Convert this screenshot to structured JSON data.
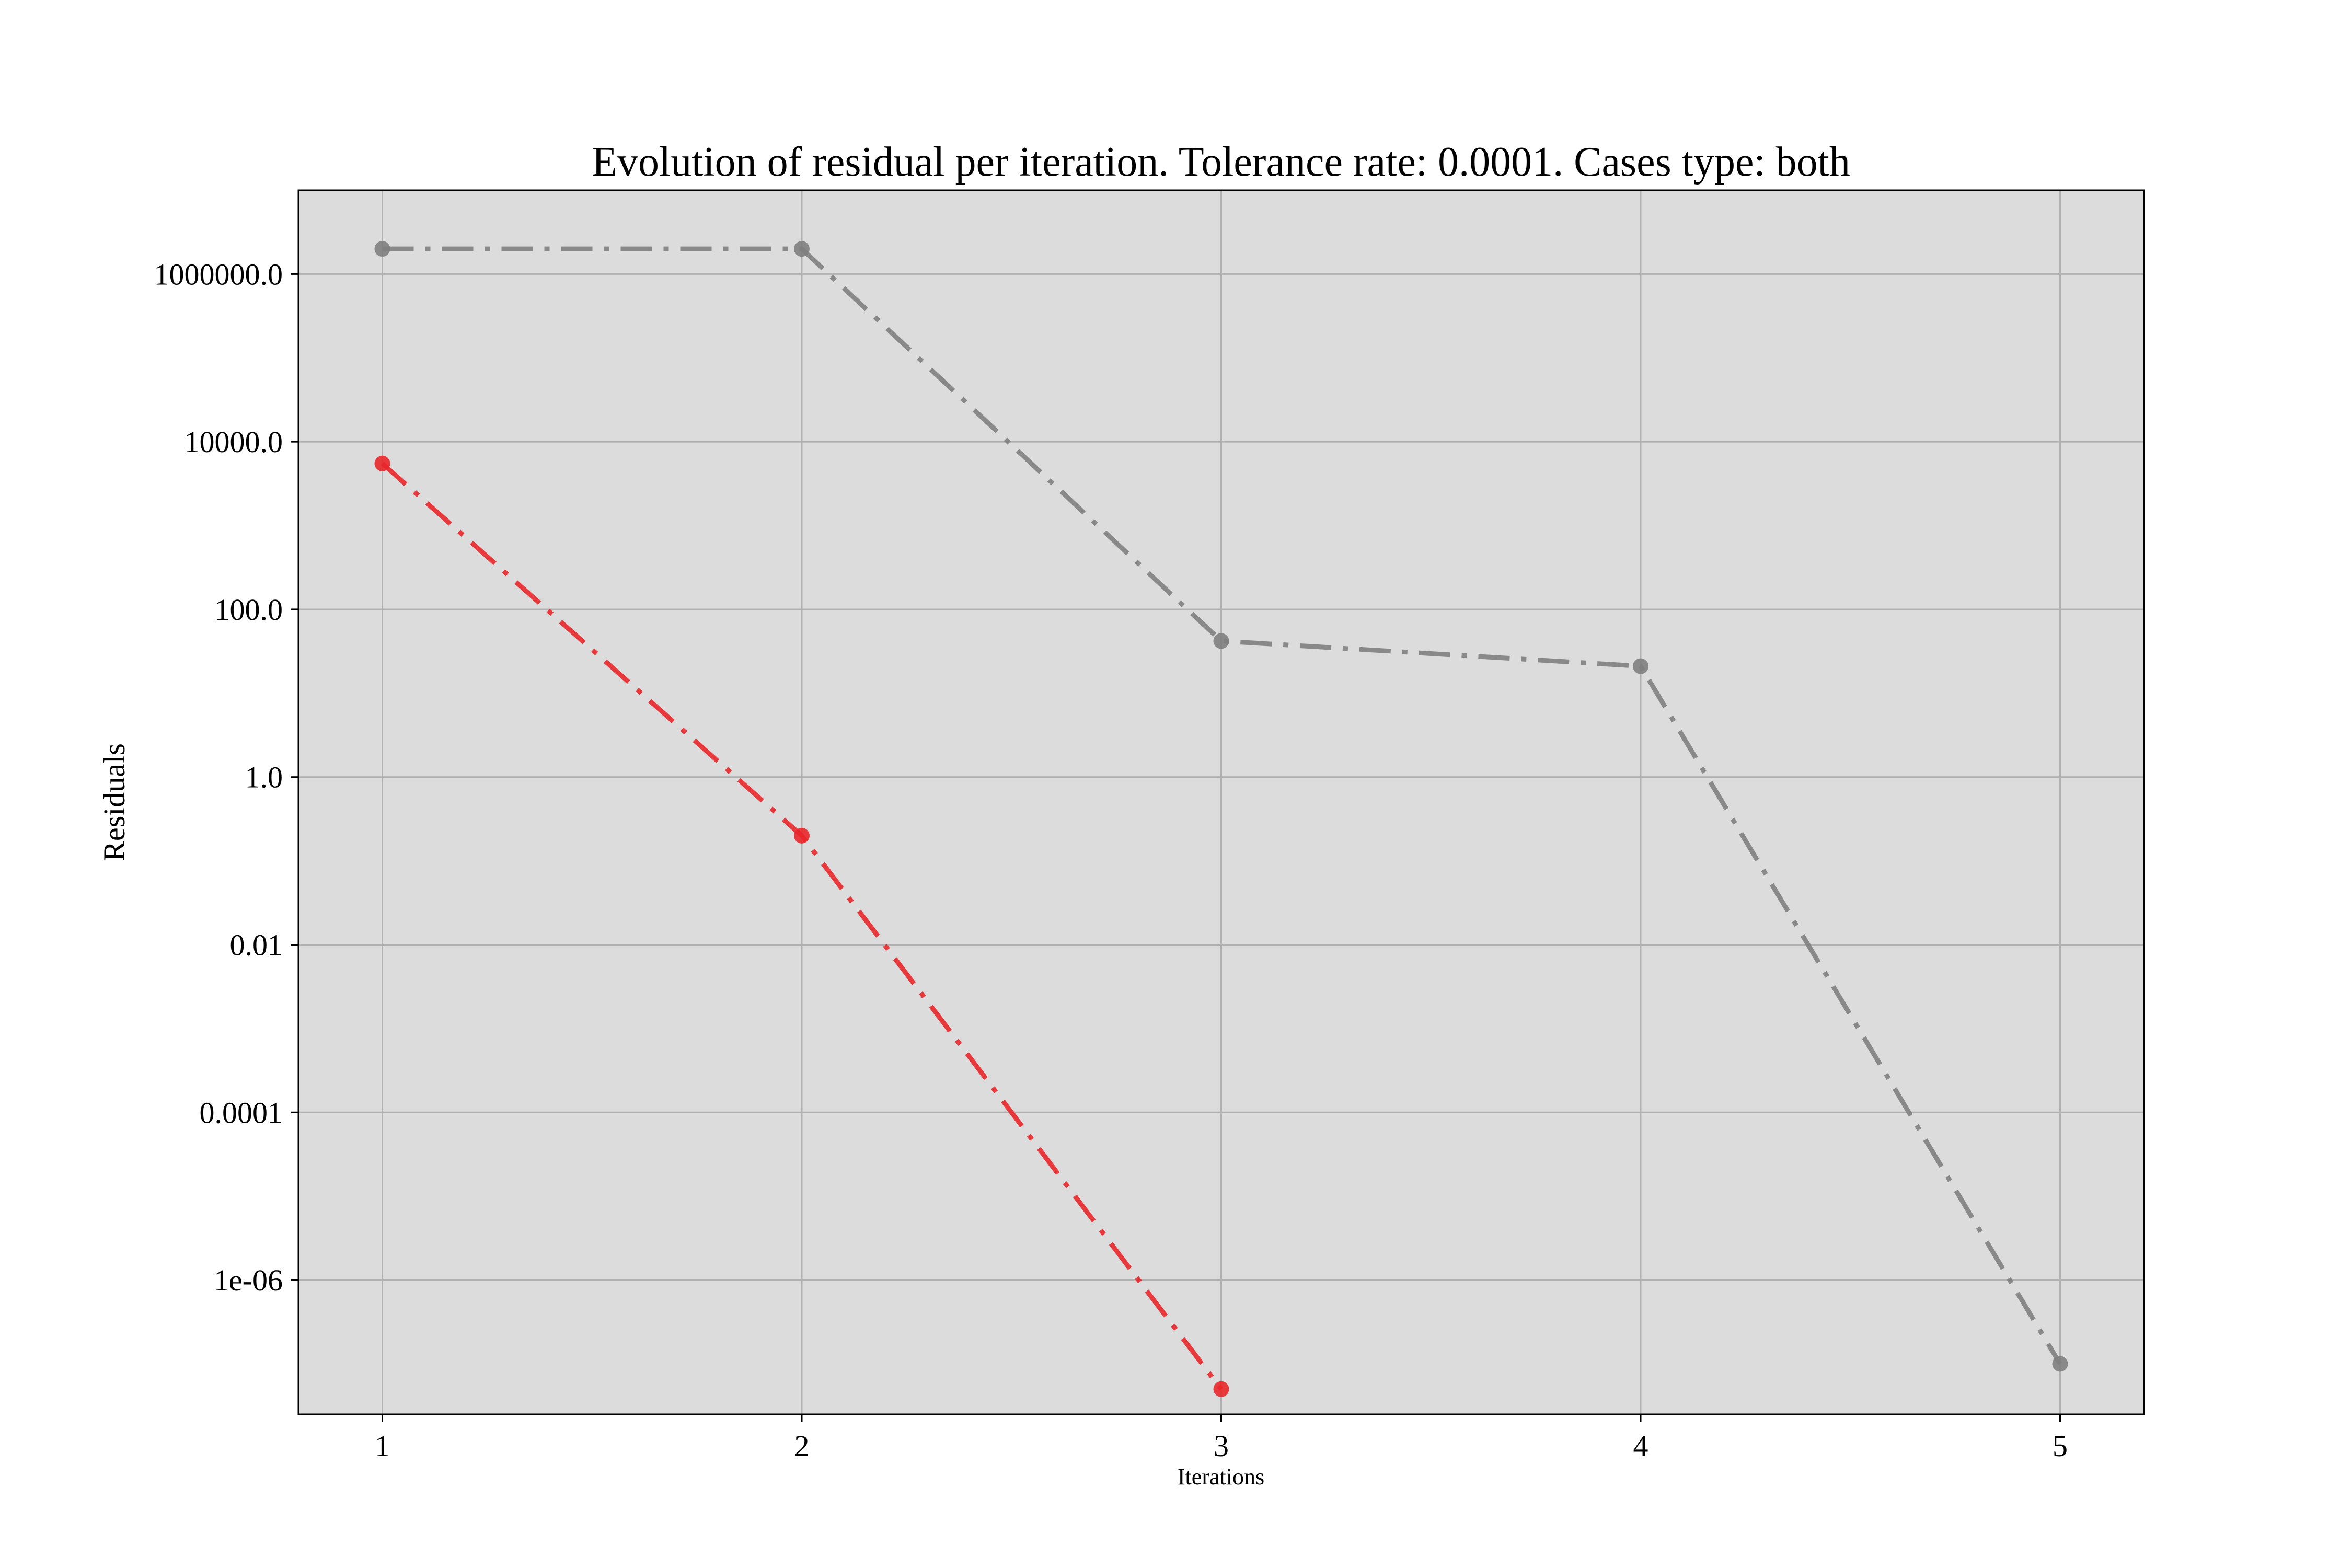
{
  "chart_data": {
    "type": "line",
    "title": "Evolution of residual per iteration. Tolerance rate: 0.0001. Cases type: both",
    "xlabel": "Iterations",
    "ylabel": "Residuals",
    "y_scale": "log",
    "grid": true,
    "x_ticks": [
      1,
      2,
      3,
      4,
      5
    ],
    "x_tick_labels": [
      "1",
      "2",
      "3",
      "4",
      "5"
    ],
    "xlim": [
      0.8,
      5.2
    ],
    "y_ticks": [
      1000000,
      10000,
      100,
      1,
      0.01,
      0.0001,
      1e-06
    ],
    "y_tick_labels": [
      "1000000.0",
      "10000.0",
      "100.0",
      "1.0",
      "0.01",
      "0.0001",
      "1e-06"
    ],
    "ylim": [
      2.5e-08,
      10000000
    ],
    "plot_background": "#dcdcdc",
    "series": [
      {
        "color": "#808080",
        "line_style": "dash-dot",
        "marker": "circle",
        "x": [
          1,
          2,
          3,
          4,
          5
        ],
        "y": [
          2000000,
          2000000,
          42,
          21,
          1e-07
        ]
      },
      {
        "color": "#e8262a",
        "line_style": "dash-dot",
        "marker": "circle",
        "x": [
          1,
          2,
          3
        ],
        "y": [
          5500,
          0.2,
          5e-08
        ]
      }
    ]
  }
}
